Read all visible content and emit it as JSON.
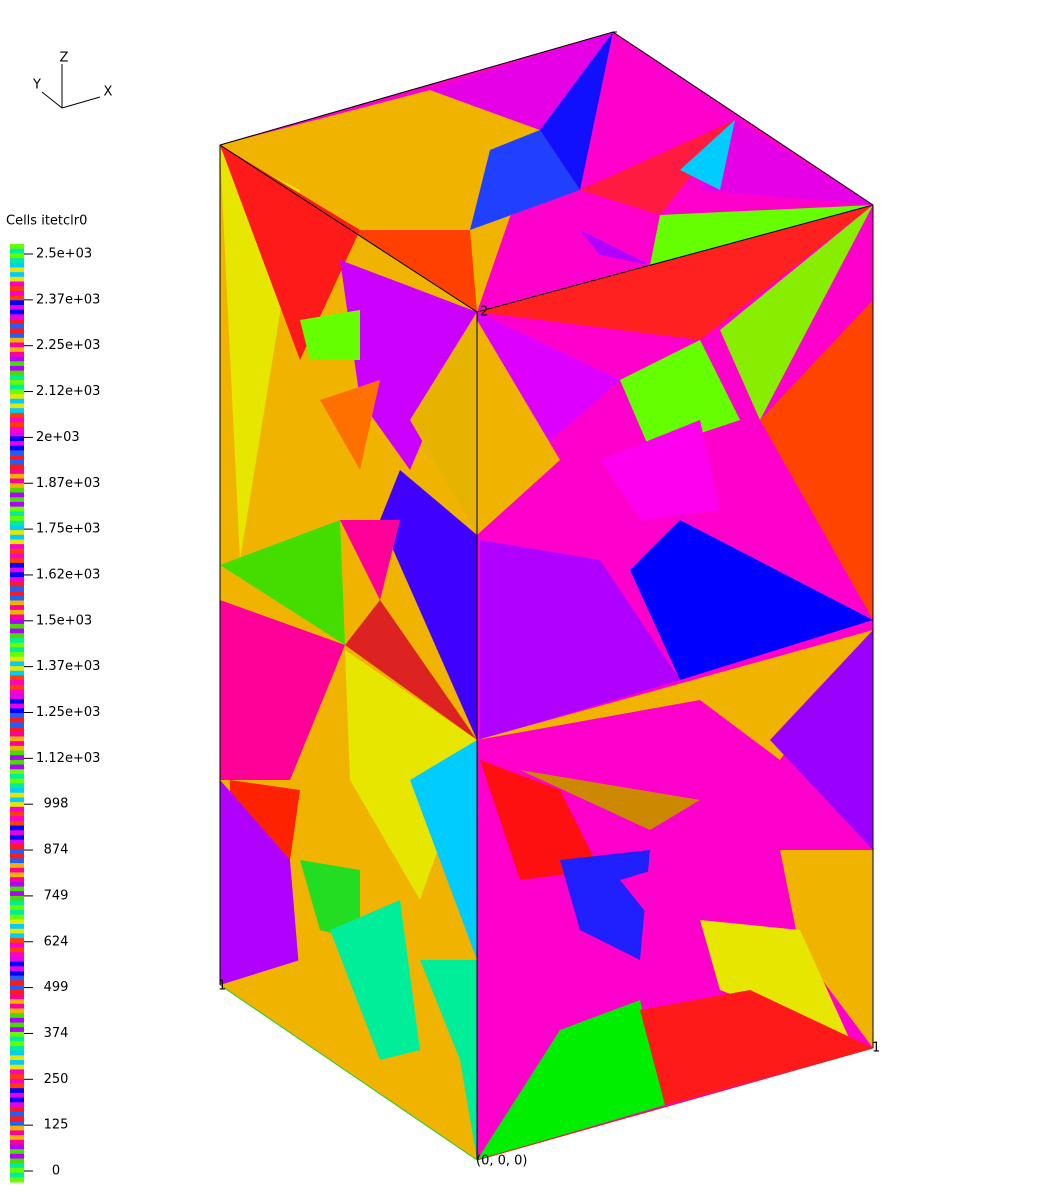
{
  "axes_triad": {
    "z": "Z",
    "y": "Y",
    "x": "X"
  },
  "colorbar": {
    "title": "Cells itetclr0",
    "tick_labels": [
      "2.5e+03",
      "2.37e+03",
      "2.25e+03",
      "2.12e+03",
      "2e+03",
      "1.87e+03",
      "1.75e+03",
      "1.62e+03",
      "1.5e+03",
      "1.37e+03",
      "1.25e+03",
      "1.12e+03",
      "998",
      "874",
      "749",
      "624",
      "499",
      "374",
      "250",
      "125",
      "0"
    ]
  },
  "box_labels": {
    "top": "2",
    "left": "1",
    "right": "1",
    "origin": "(0, 0, 0)"
  }
}
